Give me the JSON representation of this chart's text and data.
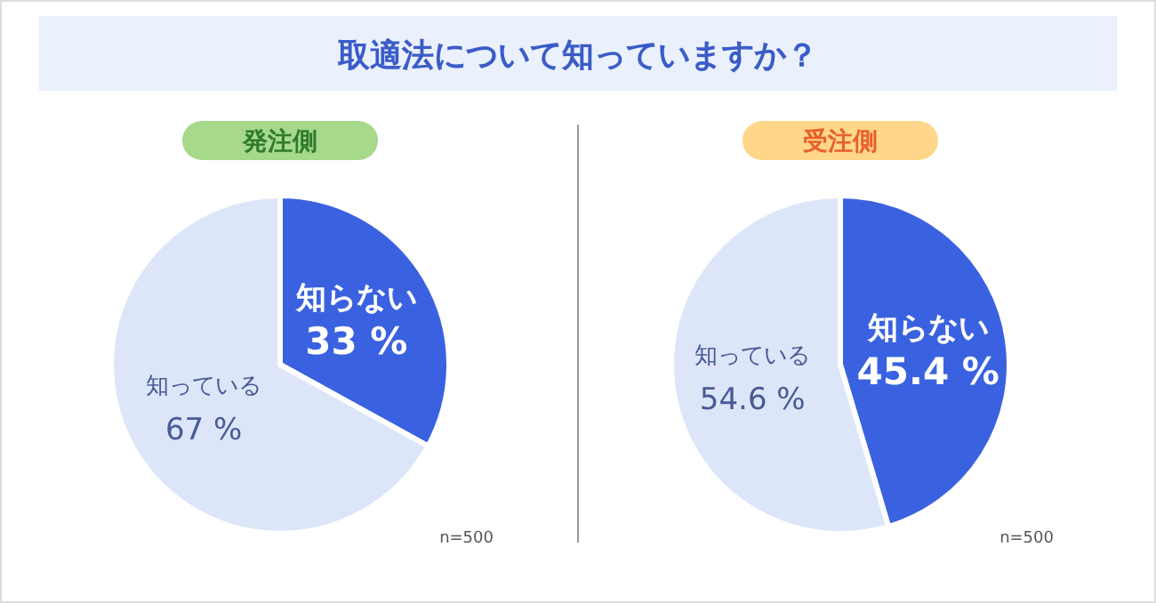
{
  "chart_data": [
    {
      "type": "pie",
      "title": "取適法について知っていますか？",
      "subtitle": "発注側",
      "categories": [
        "知らない",
        "知っている"
      ],
      "values": [
        33,
        67
      ],
      "value_labels": [
        "33 %",
        "67 %"
      ],
      "colors": [
        "#3a62e0",
        "#dce6f8"
      ],
      "annotations": [
        "n=500"
      ]
    },
    {
      "type": "pie",
      "subtitle": "受注側",
      "categories": [
        "知らない",
        "知っている"
      ],
      "values": [
        45.4,
        54.6
      ],
      "value_labels": [
        "45.4 %",
        "54.6 %"
      ],
      "colors": [
        "#3a62e0",
        "#dce6f8"
      ],
      "annotations": [
        "n=500"
      ]
    }
  ]
}
